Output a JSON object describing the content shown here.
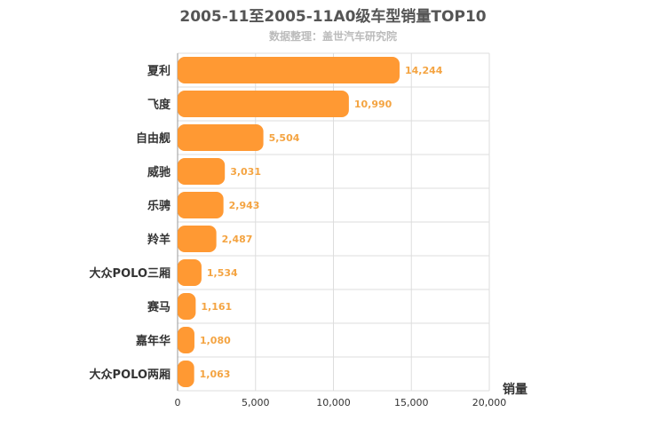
{
  "chart_data": {
    "type": "bar",
    "orientation": "horizontal",
    "title": "2005-11至2005-11A0级车型销量TOP10",
    "subtitle": "数据整理：盖世汽车研究院",
    "xlabel": "销量",
    "xlim": [
      0,
      20000
    ],
    "xticks": [
      0,
      5000,
      10000,
      15000,
      20000
    ],
    "xtick_labels": [
      "0",
      "5,000",
      "10,000",
      "15,000",
      "20,000"
    ],
    "grid": true,
    "bar_color": "#ff9933",
    "categories": [
      "夏利",
      "飞度",
      "自由舰",
      "威驰",
      "乐骋",
      "羚羊",
      "大众POLO三厢",
      "赛马",
      "嘉年华",
      "大众POLO两厢"
    ],
    "values": [
      14244,
      10990,
      5504,
      3031,
      2943,
      2487,
      1534,
      1161,
      1080,
      1063
    ],
    "value_labels": [
      "14,244",
      "10,990",
      "5,504",
      "3,031",
      "2,943",
      "2,487",
      "1,534",
      "1,161",
      "1,080",
      "1,063"
    ]
  }
}
